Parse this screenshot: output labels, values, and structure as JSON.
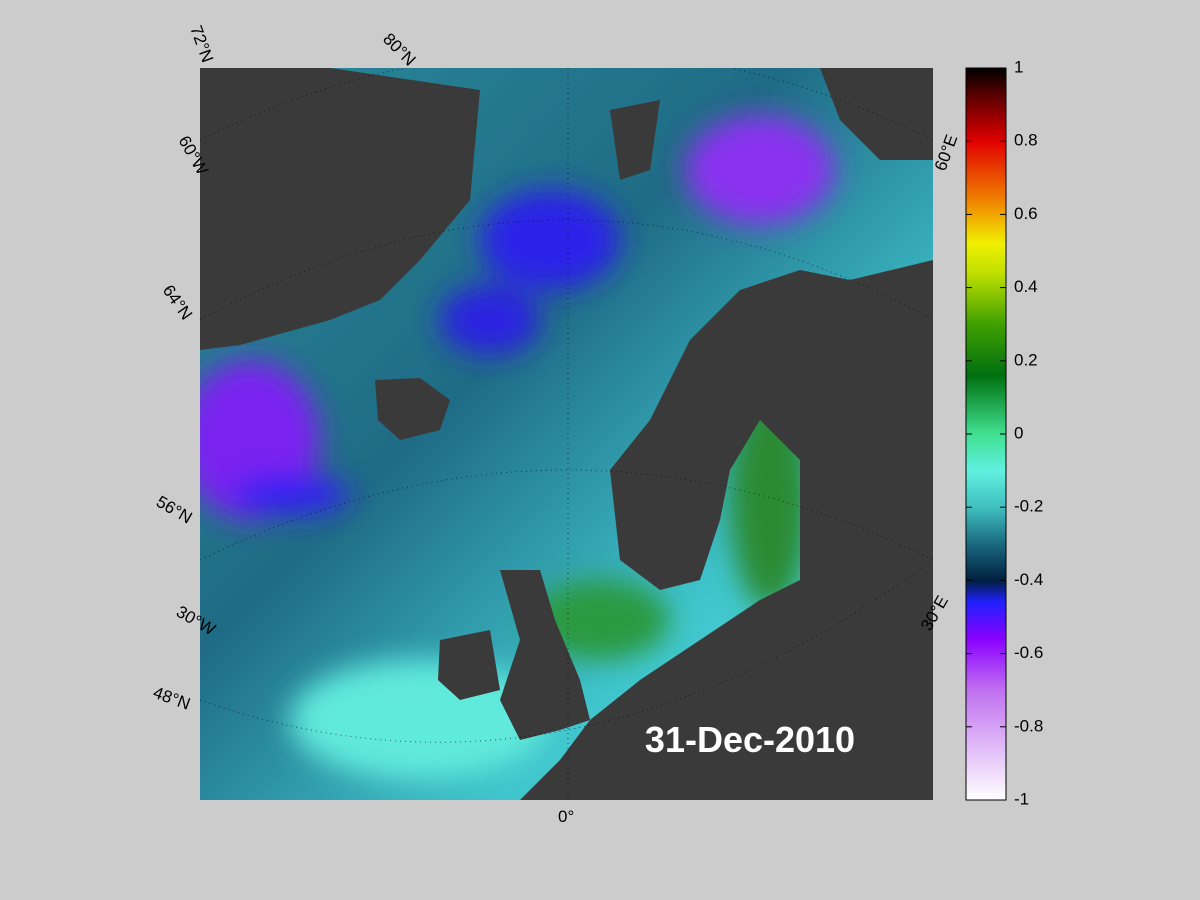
{
  "map": {
    "labels": [
      "72°N",
      "80°N",
      "60°W",
      "64°N",
      "56°N",
      "30°W",
      "48°N",
      "0°",
      "30°E",
      "60°E"
    ],
    "date": "31-Dec-2010"
  },
  "colorbar": {
    "lim": [
      -1,
      1
    ],
    "ticks": [
      1,
      0.8,
      0.6,
      0.4,
      0.2,
      0,
      -0.2,
      -0.4,
      -0.6,
      -0.8,
      -1
    ]
  }
}
